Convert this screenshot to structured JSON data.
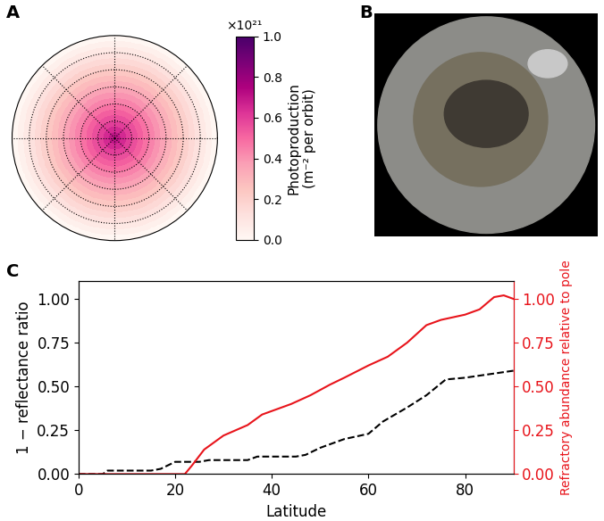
{
  "chart_data": [
    {
      "panel": "A",
      "type": "polar_heatmap",
      "latitude_bins": [
        0,
        5,
        10,
        15,
        20,
        25,
        30,
        35,
        40,
        45,
        50,
        55,
        60,
        65,
        70,
        75,
        80,
        85,
        90
      ],
      "values": [
        0.0,
        0.04,
        0.08,
        0.12,
        0.16,
        0.2,
        0.24,
        0.28,
        0.32,
        0.36,
        0.4,
        0.44,
        0.48,
        0.52,
        0.56,
        0.6,
        0.65,
        0.7
      ],
      "grid": true,
      "tick_labels": false,
      "grid_latitudes": [
        15,
        30,
        45,
        60,
        75
      ],
      "grid_longitudes": [
        0,
        45,
        90,
        135,
        180,
        225,
        270,
        315
      ],
      "colorbar": {
        "label": "Photoproduction\n(m⁻² per orbit)",
        "multiplier": "×10²¹",
        "range": [
          0.0,
          1.0
        ],
        "ticks": [
          {
            "value": 0.0,
            "label": "0.0"
          },
          {
            "value": 0.2,
            "label": "0.2"
          },
          {
            "value": 0.4,
            "label": "0.4"
          },
          {
            "value": 0.6,
            "label": "0.6"
          },
          {
            "value": 0.8,
            "label": "0.8"
          },
          {
            "value": 1.0,
            "label": "1.0"
          }
        ]
      }
    },
    {
      "panel": "B",
      "type": "image"
    },
    {
      "panel": "C",
      "type": "line",
      "x_label": "Latitude",
      "xlim": [
        0,
        90
      ],
      "xticks": [
        0,
        20,
        40,
        60,
        80
      ],
      "ylim": [
        0,
        1.1
      ],
      "yticks": [
        {
          "value": 0.0,
          "label": "0.00"
        },
        {
          "value": 0.25,
          "label": "0.25"
        },
        {
          "value": 0.5,
          "label": "0.50"
        },
        {
          "value": 0.75,
          "label": "0.75"
        },
        {
          "value": 1.0,
          "label": "1.00"
        }
      ],
      "y2lim": [
        0,
        1.1
      ],
      "y2ticks": [
        {
          "value": 0.0,
          "label": "0.00"
        },
        {
          "value": 0.25,
          "label": "0.25"
        },
        {
          "value": 0.5,
          "label": "0.50"
        },
        {
          "value": 0.75,
          "label": "0.75"
        },
        {
          "value": 1.0,
          "label": "1.00"
        }
      ],
      "series": [
        {
          "name": "1 − reflectance ratio",
          "color": "#000000",
          "line_style": "dashed",
          "x": [
            0,
            5,
            6,
            15,
            17,
            20,
            25,
            27,
            35,
            37,
            45,
            47,
            50,
            55,
            60,
            63,
            68,
            72,
            76,
            80,
            85,
            90
          ],
          "values": [
            0,
            0,
            0.02,
            0.02,
            0.03,
            0.07,
            0.07,
            0.08,
            0.08,
            0.1,
            0.1,
            0.11,
            0.15,
            0.2,
            0.23,
            0.3,
            0.38,
            0.45,
            0.54,
            0.55,
            0.57,
            0.59
          ]
        },
        {
          "name": "Refractory abundance relative to pole",
          "color": "#e8141b",
          "line_style": "solid",
          "axis": "y2",
          "x": [
            0,
            22,
            23.5,
            26,
            30,
            35,
            38,
            44,
            48,
            52,
            55,
            60,
            64,
            68,
            72,
            75,
            80,
            83,
            86,
            88,
            90
          ],
          "values": [
            0,
            0,
            0.05,
            0.14,
            0.22,
            0.28,
            0.34,
            0.4,
            0.45,
            0.51,
            0.55,
            0.62,
            0.67,
            0.75,
            0.85,
            0.88,
            0.91,
            0.94,
            1.01,
            1.02,
            1.0
          ]
        }
      ]
    }
  ]
}
